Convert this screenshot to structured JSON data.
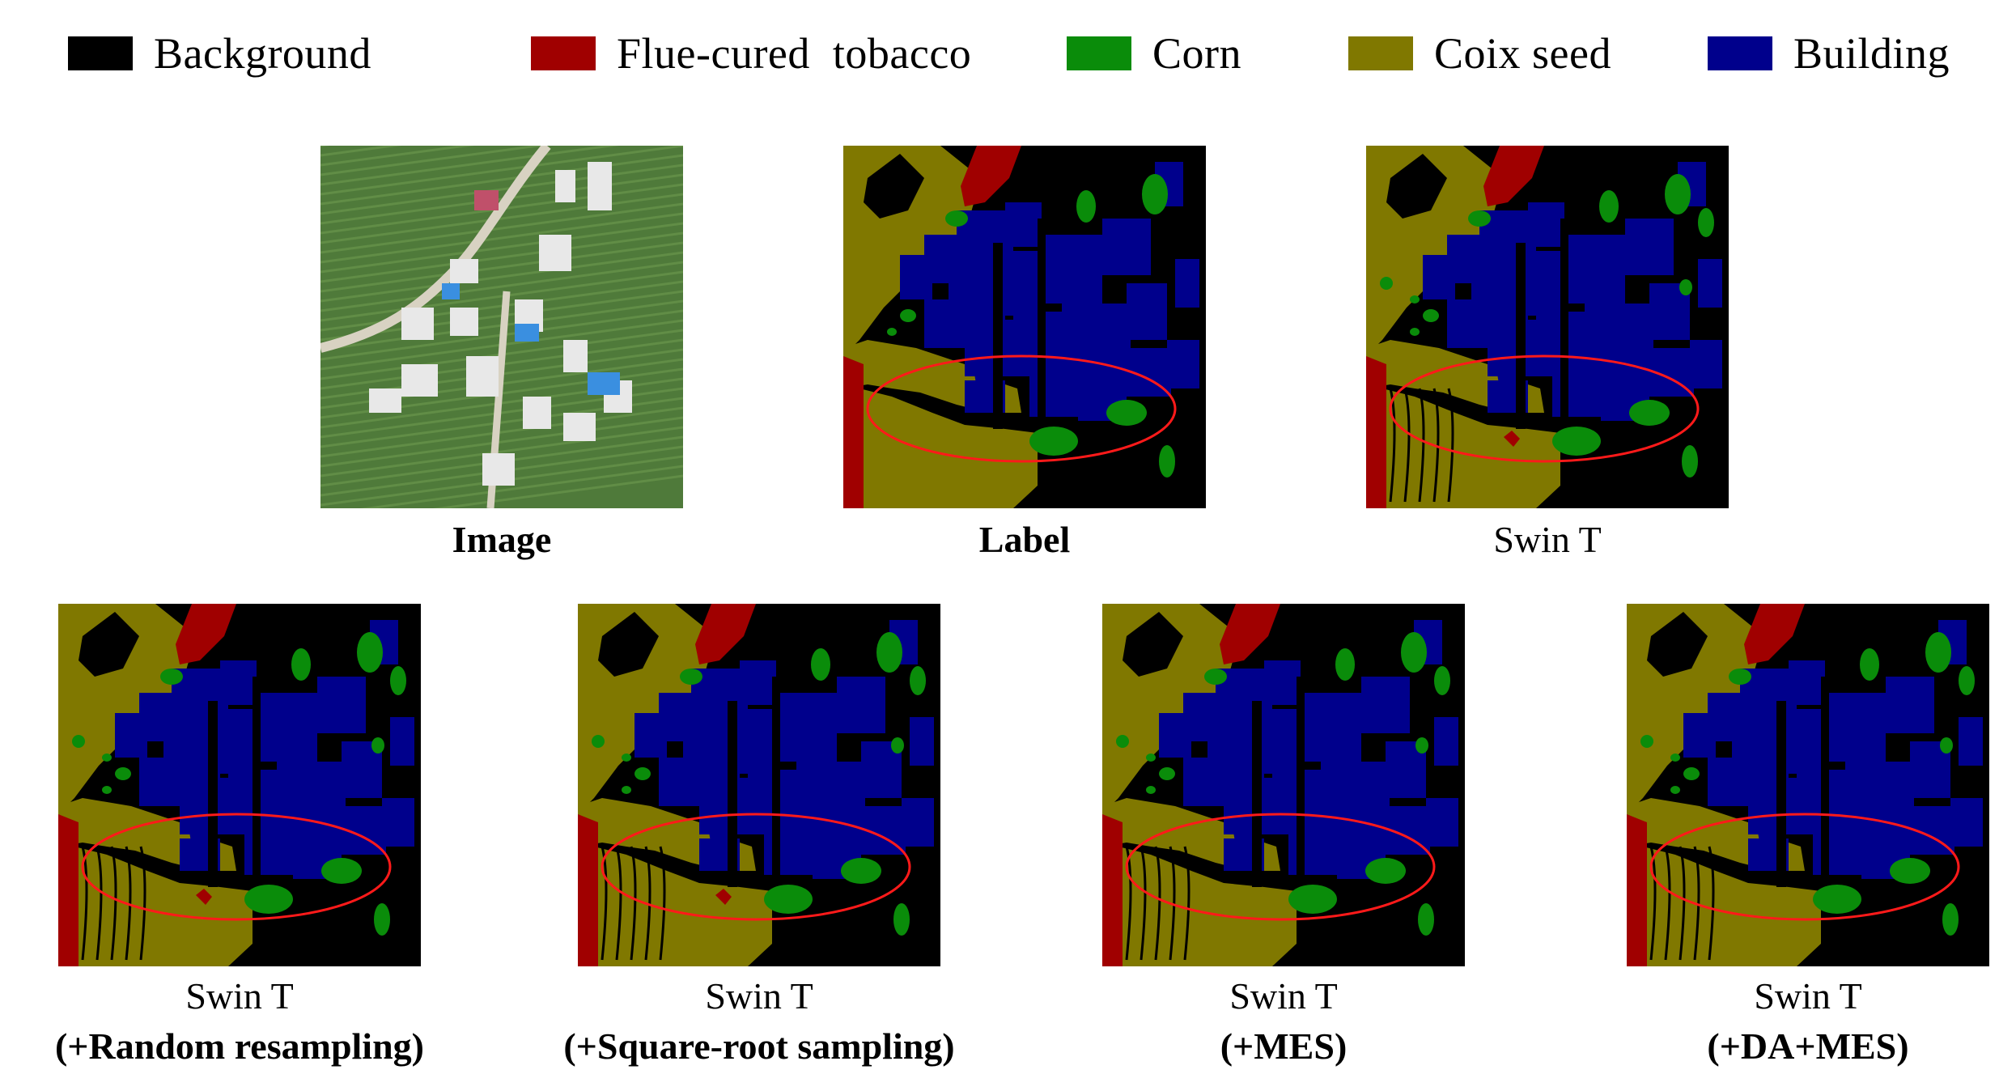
{
  "legend": [
    {
      "label": "Background",
      "color": "#000000"
    },
    {
      "label": "Flue-cured  tobacco",
      "color": "#a00000"
    },
    {
      "label": "Corn",
      "color": "#0a8c0a"
    },
    {
      "label": "Coix seed",
      "color": "#807800"
    },
    {
      "label": "Building",
      "color": "#00008c"
    }
  ],
  "colors": {
    "background": "#000000",
    "tobacco": "#a00000",
    "corn": "#0a8c0a",
    "coix": "#807800",
    "building": "#00008c",
    "ellipse": "#ff1a1a"
  },
  "panels": [
    {
      "caption_line1": "Image",
      "caption_line2": "",
      "kind": "photo"
    },
    {
      "caption_line1": "Label",
      "caption_line2": "",
      "kind": "label"
    },
    {
      "caption_line1": "Swin T",
      "caption_line2": "",
      "kind": "pred"
    },
    {
      "caption_line1": "Swin T",
      "caption_line2": "(+Random resampling)",
      "kind": "pred"
    },
    {
      "caption_line1": "Swin T",
      "caption_line2": "(+Square-root sampling)",
      "kind": "pred"
    },
    {
      "caption_line1": "Swin T",
      "caption_line2": "(+MES)",
      "kind": "pred"
    },
    {
      "caption_line1": "Swin T",
      "caption_line2": "(+DA+MES)",
      "kind": "pred"
    }
  ]
}
